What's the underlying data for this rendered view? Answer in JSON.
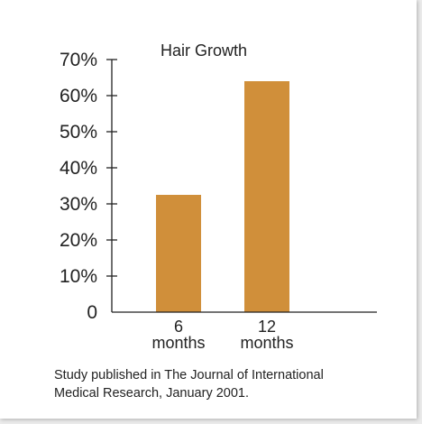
{
  "chart_data": {
    "type": "bar",
    "title": "Hair Growth",
    "categories": [
      [
        "6",
        "months"
      ],
      [
        "12",
        "months"
      ]
    ],
    "values": [
      32.5,
      64
    ],
    "ylim": [
      0,
      70
    ],
    "yticks": [
      0,
      10,
      20,
      30,
      40,
      50,
      60,
      70
    ],
    "ytick_labels": [
      "0",
      "10%",
      "20%",
      "30%",
      "40%",
      "50%",
      "60%",
      "70%"
    ],
    "bar_color": "#d08f3a",
    "grid": false,
    "legend": "none"
  },
  "footnote": {
    "line1": "Study published in The Journal of International",
    "line2": "Medical Research, January 2001."
  }
}
